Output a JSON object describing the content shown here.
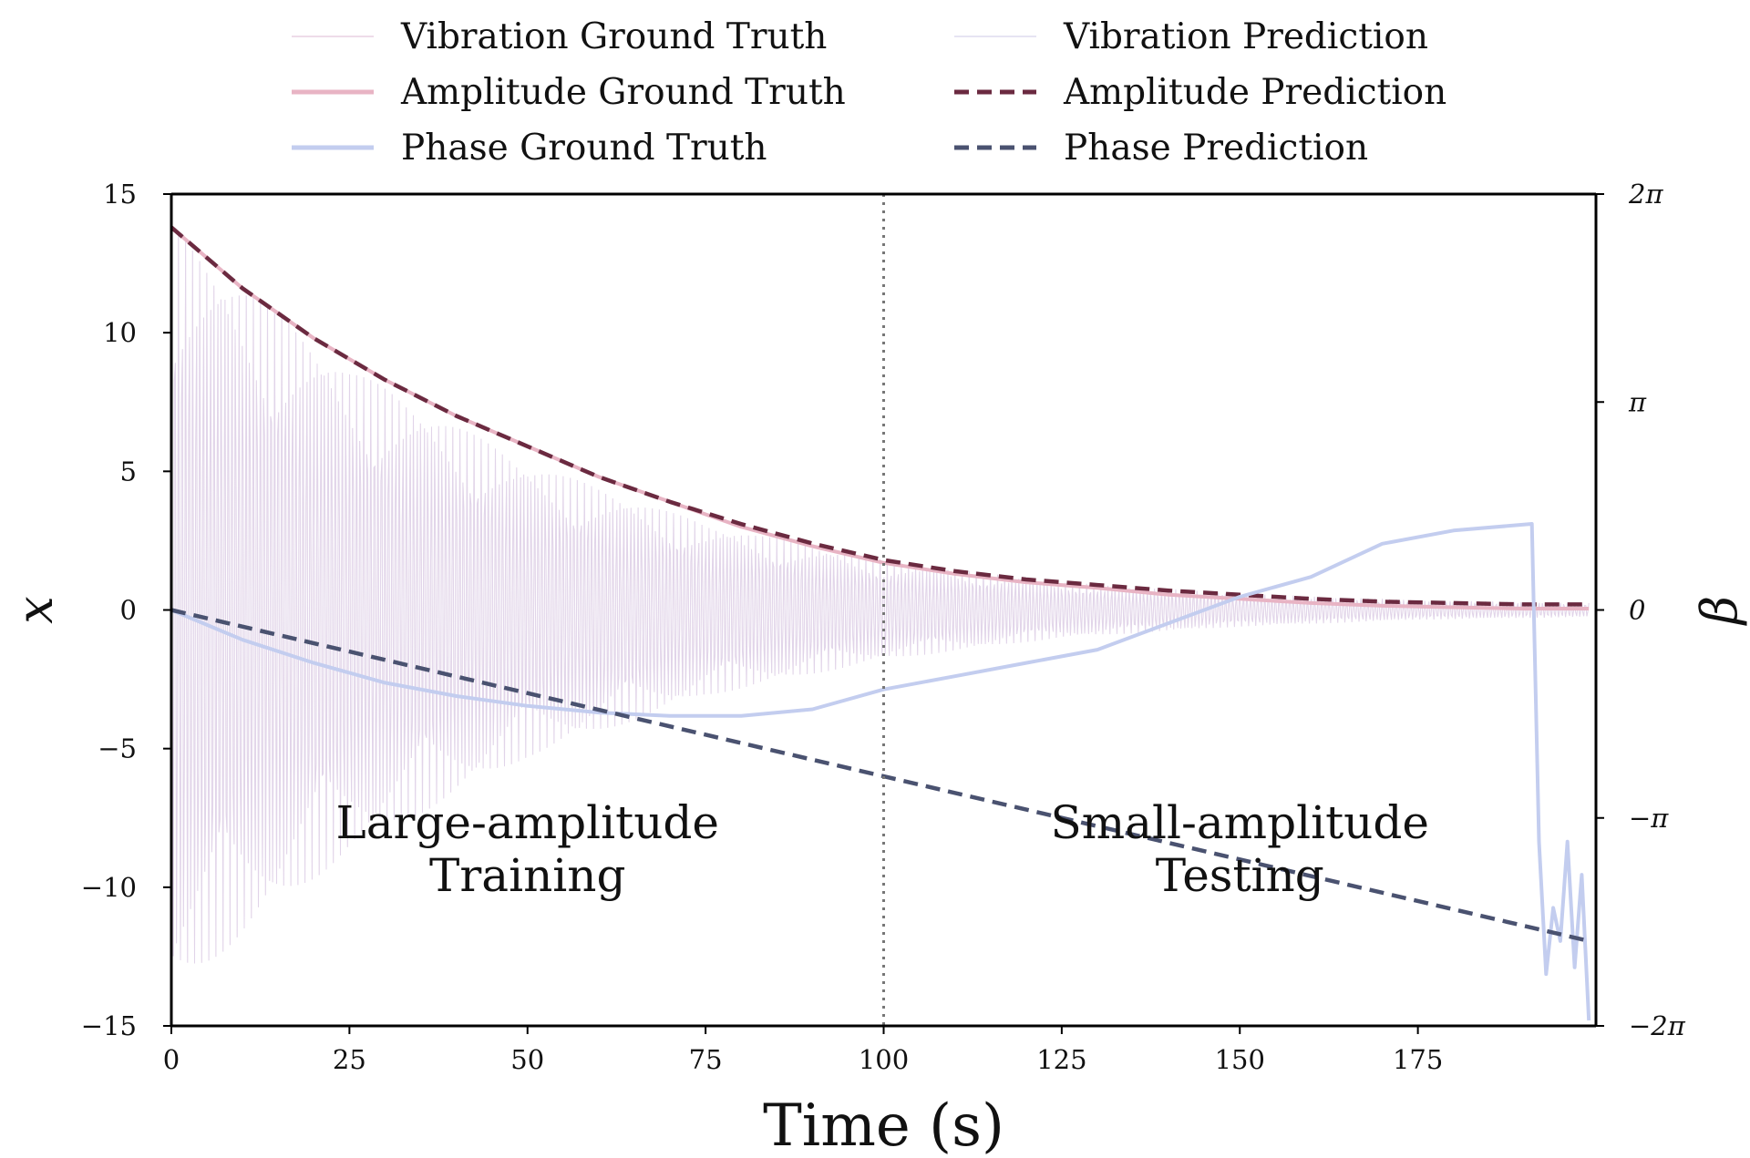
{
  "chart_data": {
    "type": "line",
    "xlabel": "Time (s)",
    "ylabel_left": "x",
    "ylabel_right": "β",
    "xlim": [
      0,
      200
    ],
    "ylim_left": [
      -15,
      15
    ],
    "ylim_right_rad": [
      -6.2832,
      6.2832
    ],
    "grid": false,
    "legend_placement": "top, outside plot, two columns",
    "x_ticks": [
      0,
      25,
      50,
      75,
      100,
      125,
      150,
      175
    ],
    "x_tick_labels": [
      "0",
      "25",
      "50",
      "75",
      "100",
      "125",
      "150",
      "175"
    ],
    "y_left_ticks": [
      15,
      10,
      5,
      0,
      -5,
      -10,
      -15
    ],
    "y_left_tick_labels": [
      "15",
      "10",
      "5",
      "0",
      "−5",
      "−10",
      "−15"
    ],
    "y_right_ticks_rad": [
      6.2832,
      3.1416,
      0,
      -3.1416,
      -6.2832
    ],
    "y_right_tick_labels": [
      "2π",
      "π",
      "0",
      "−π",
      "−2π"
    ],
    "split_line_x": 100,
    "annotations": [
      {
        "line1": "Large-amplitude",
        "line2": "Training",
        "x": 50,
        "y": -8.5
      },
      {
        "line1": "Small-amplitude",
        "line2": "Testing",
        "x": 150,
        "y": -8.5
      }
    ],
    "series": [
      {
        "name": "Vibration Ground Truth",
        "axis": "left",
        "color": "#e3c8dc",
        "style": "solid-thin-oscillation",
        "envelope_x": [
          0,
          25,
          50,
          75,
          100,
          125,
          150,
          175,
          199
        ],
        "envelope_y": [
          13.8,
          8.7,
          5.3,
          3.1,
          1.8,
          1.0,
          0.6,
          0.35,
          0.25
        ]
      },
      {
        "name": "Vibration Prediction",
        "axis": "left",
        "color": "#d8d4ec",
        "style": "solid-thin-oscillation",
        "envelope_x": [
          0,
          25,
          50,
          75,
          100,
          125,
          150,
          175,
          199
        ],
        "envelope_y": [
          13.8,
          8.7,
          5.3,
          3.1,
          1.8,
          1.0,
          0.6,
          0.35,
          0.25
        ]
      },
      {
        "name": "Amplitude Ground Truth",
        "axis": "left",
        "color": "#e8b4c4",
        "style": "solid",
        "x": [
          0,
          10,
          20,
          30,
          40,
          50,
          60,
          70,
          80,
          90,
          100,
          110,
          120,
          130,
          140,
          150,
          160,
          170,
          180,
          190,
          199
        ],
        "y": [
          13.8,
          11.6,
          9.8,
          8.3,
          7.0,
          5.9,
          4.8,
          3.9,
          3.0,
          2.3,
          1.7,
          1.3,
          1.0,
          0.8,
          0.55,
          0.4,
          0.25,
          0.15,
          0.1,
          0.05,
          0.05
        ]
      },
      {
        "name": "Amplitude Prediction",
        "axis": "left",
        "color": "#6b2a40",
        "style": "dashed",
        "x": [
          0,
          10,
          20,
          30,
          40,
          50,
          60,
          70,
          80,
          90,
          100,
          110,
          120,
          130,
          140,
          150,
          160,
          170,
          180,
          190,
          199
        ],
        "y": [
          13.8,
          11.6,
          9.8,
          8.3,
          7.0,
          5.9,
          4.8,
          3.9,
          3.1,
          2.4,
          1.8,
          1.4,
          1.1,
          0.9,
          0.7,
          0.55,
          0.4,
          0.3,
          0.25,
          0.2,
          0.2
        ]
      },
      {
        "name": "Phase Ground Truth",
        "axis": "right",
        "color": "#c3cdef",
        "style": "solid",
        "x": [
          0,
          10,
          20,
          30,
          40,
          50,
          60,
          70,
          80,
          90,
          100,
          110,
          120,
          130,
          140,
          150,
          160,
          170,
          180,
          191,
          192,
          193,
          194,
          195,
          196,
          197,
          198,
          199
        ],
        "y": [
          0,
          -0.45,
          -0.8,
          -1.1,
          -1.3,
          -1.45,
          -1.55,
          -1.6,
          -1.6,
          -1.5,
          -1.2,
          -1.0,
          -0.8,
          -0.6,
          -0.2,
          0.2,
          0.5,
          1.0,
          1.2,
          1.3,
          -3.5,
          -5.5,
          -4.5,
          -5.0,
          -3.5,
          -5.4,
          -4.0,
          -6.2
        ]
      },
      {
        "name": "Phase Prediction",
        "axis": "right",
        "color": "#4a5270",
        "style": "dashed",
        "x": [
          0,
          199
        ],
        "y": [
          0,
          -5.0
        ]
      }
    ]
  }
}
